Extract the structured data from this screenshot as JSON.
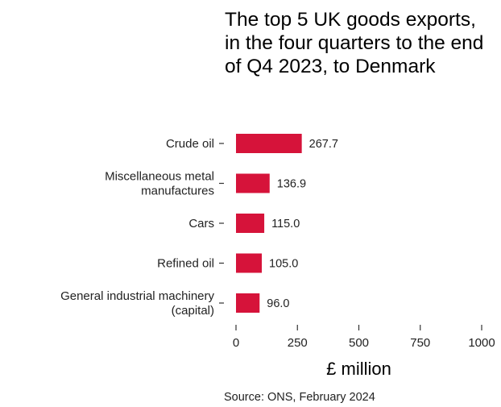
{
  "chart_data": {
    "type": "bar",
    "orientation": "horizontal",
    "title": "The top 5 UK goods exports, in the four quarters to the end of Q4 2023, to Denmark",
    "categories": [
      [
        "Crude oil"
      ],
      [
        "Miscellaneous metal",
        "manufactures"
      ],
      [
        "Cars"
      ],
      [
        "Refined oil"
      ],
      [
        "General industrial machinery",
        "(capital)"
      ]
    ],
    "values": [
      267.7,
      136.9,
      115.0,
      105.0,
      96.0
    ],
    "value_labels": [
      "267.7",
      "136.9",
      "115.0",
      "105.0",
      "96.0"
    ],
    "xlabel": "£ million",
    "xlim": [
      0,
      1000
    ],
    "xticks": [
      0,
      250,
      500,
      750,
      1000
    ],
    "bar_color": "#d6133a",
    "grid": false,
    "source": "Source: ONS, February 2024"
  }
}
